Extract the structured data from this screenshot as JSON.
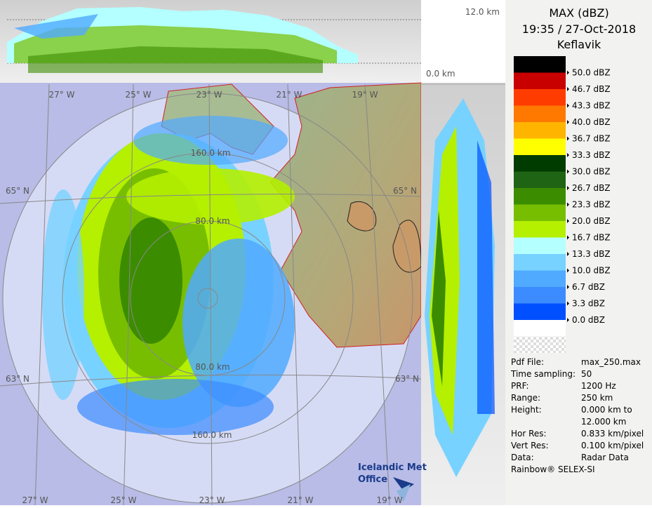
{
  "header": {
    "title": "MAX (dBZ)",
    "time": "19:35 / 27-Oct-2018",
    "site": "Keflavik"
  },
  "legend": [
    {
      "label": "50.0 dBZ",
      "color": "#000000"
    },
    {
      "label": "46.7 dBZ",
      "color": "#c80000"
    },
    {
      "label": "43.3 dBZ",
      "color": "#ff3c00"
    },
    {
      "label": "40.0 dBZ",
      "color": "#ff7800"
    },
    {
      "label": "36.7 dBZ",
      "color": "#ffb400"
    },
    {
      "label": "33.3 dBZ",
      "color": "#ffff00"
    },
    {
      "label": "30.0 dBZ",
      "color": "#003c00"
    },
    {
      "label": "26.7 dBZ",
      "color": "#1e6414"
    },
    {
      "label": "23.3 dBZ",
      "color": "#3c8c00"
    },
    {
      "label": "20.0 dBZ",
      "color": "#78be00"
    },
    {
      "label": "16.7 dBZ",
      "color": "#b4f000"
    },
    {
      "label": "13.3 dBZ",
      "color": "#b4ffff"
    },
    {
      "label": "10.0 dBZ",
      "color": "#78d2ff"
    },
    {
      "label": "6.7 dBZ",
      "color": "#50aaff"
    },
    {
      "label": "3.3 dBZ",
      "color": "#3c8cff"
    },
    {
      "label": "0.0 dBZ",
      "color": "#0050ff"
    }
  ],
  "vertical_panel": {
    "top": "12.0 km",
    "bottom": "0.0 km"
  },
  "map": {
    "lon_top": [
      "27° W",
      "25° W",
      "23° W",
      "21° W",
      "19° W"
    ],
    "lon_bottom": [
      "27° W",
      "25° W",
      "23° W",
      "21° W",
      "19° W"
    ],
    "lat_left": [
      "65° N",
      "63° N"
    ],
    "lat_right": [
      "65° N",
      "63° N"
    ],
    "ranges": [
      "160.0 km",
      "80.0 km",
      "80.0 km",
      "160.0 km"
    ]
  },
  "logo": [
    "Icelandic Met",
    "Office"
  ],
  "info": [
    {
      "label": "Pdf File:",
      "value": "max_250.max"
    },
    {
      "label": "Time sampling:",
      "value": "50"
    },
    {
      "label": "PRF:",
      "value": "1200 Hz"
    },
    {
      "label": "Range:",
      "value": "250 km"
    },
    {
      "label": "Height:",
      "value": "0.000 km to"
    },
    {
      "value": "12.000 km"
    },
    {
      "label": "Hor Res:",
      "value": "0.833 km/pixel"
    },
    {
      "label": "Vert Res:",
      "value": "0.100 km/pixel"
    },
    {
      "label": "Data:",
      "value": "Radar Data"
    }
  ],
  "footer": "Rainbow® SELEX-SI"
}
